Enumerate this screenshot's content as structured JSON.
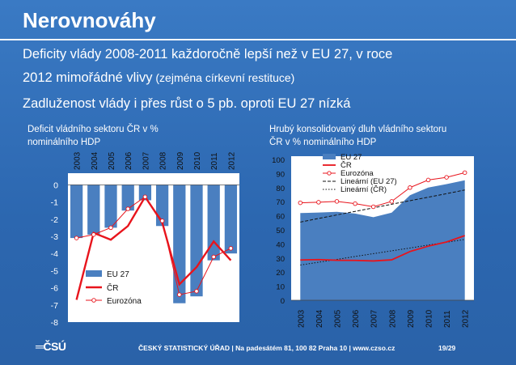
{
  "header": {
    "title": "Nerovnováhy",
    "line1": "Deficity vlády 2008-2011 každoročně lepší než  v EU 27, v  roce",
    "line2_main": "2012 mimořádné vlivy",
    "line2_small": " (zejména církevní restituce)",
    "line3": "Zadluženost vlády i přes růst o 5 pb. oproti  EU 27 nízká"
  },
  "colors": {
    "eu27_area": "#4a7fc0",
    "cr_line": "#e8141c",
    "eurozone_line": "#e8141c",
    "axis_text": "#ffffff"
  },
  "chart_data": [
    {
      "type": "bar",
      "title_line1": "Deficit vládního sektoru ČR v %",
      "title_line2": "nominálního  HDP",
      "categories": [
        "2003",
        "2004",
        "2005",
        "2006",
        "2007",
        "2008",
        "2009",
        "2010",
        "2011",
        "2012"
      ],
      "yticks": [
        "0",
        "-1",
        "-2",
        "-3",
        "-4",
        "-5",
        "-6",
        "-7",
        "-8"
      ],
      "ylim": [
        -8,
        0.3
      ],
      "series": [
        {
          "name": "EU 27",
          "kind": "bar",
          "values": [
            -3.1,
            -2.9,
            -2.5,
            -1.5,
            -0.9,
            -2.4,
            -6.9,
            -6.5,
            -4.4,
            -4.0
          ]
        },
        {
          "name": "ČR",
          "kind": "line",
          "values": [
            -6.7,
            -2.8,
            -3.2,
            -2.4,
            -0.7,
            -2.2,
            -5.8,
            -4.8,
            -3.3,
            -4.4
          ]
        },
        {
          "name": "Eurozóna",
          "kind": "line-marker",
          "values": [
            -3.1,
            -2.9,
            -2.5,
            -1.4,
            -0.7,
            -2.1,
            -6.4,
            -6.2,
            -4.2,
            -3.7
          ]
        }
      ],
      "legend": "bottom-left"
    },
    {
      "type": "area",
      "title_line1": "Hrubý konsolidovaný dluh vládního sektoru",
      "title_line2": "ČR  v % nominálního HDP",
      "categories": [
        "2003",
        "2004",
        "2005",
        "2006",
        "2007",
        "2008",
        "2009",
        "2010",
        "2011",
        "2012"
      ],
      "yticks": [
        "100",
        "90",
        "80",
        "70",
        "60",
        "50",
        "40",
        "30",
        "20",
        "10",
        "0"
      ],
      "ylim": [
        0,
        100
      ],
      "series": [
        {
          "name": "EU 27",
          "kind": "area",
          "values": [
            61.9,
            62.3,
            62.8,
            61.6,
            59.0,
            62.2,
            74.6,
            80.0,
            82.5,
            85.2
          ]
        },
        {
          "name": "ČR",
          "kind": "line",
          "values": [
            28.6,
            28.9,
            28.4,
            28.3,
            27.9,
            28.7,
            34.6,
            38.4,
            41.4,
            45.9
          ]
        },
        {
          "name": "Eurozóna",
          "kind": "line-marker",
          "values": [
            69.2,
            69.6,
            70.2,
            68.6,
            66.4,
            70.2,
            80.0,
            85.4,
            87.3,
            90.6
          ]
        },
        {
          "name": "Lineární (EU 27)",
          "kind": "trend-dashed",
          "values": [
            55.5,
            58.1,
            60.6,
            63.1,
            65.6,
            68.2,
            70.7,
            73.2,
            75.7,
            78.3
          ]
        },
        {
          "name": "Lineární (ČR)",
          "kind": "trend-dotted",
          "values": [
            25.0,
            27.0,
            29.0,
            31.1,
            33.1,
            35.1,
            37.1,
            39.2,
            41.2,
            43.2
          ]
        }
      ],
      "legend": "top-right"
    }
  ],
  "footer": {
    "logo": "═ČSÚ",
    "text": "ČESKÝ STATISTICKÝ ÚŘAD  |  Na padesátém 81, 100 82 Praha 10  |  www.czso.cz",
    "page": "19/29"
  }
}
